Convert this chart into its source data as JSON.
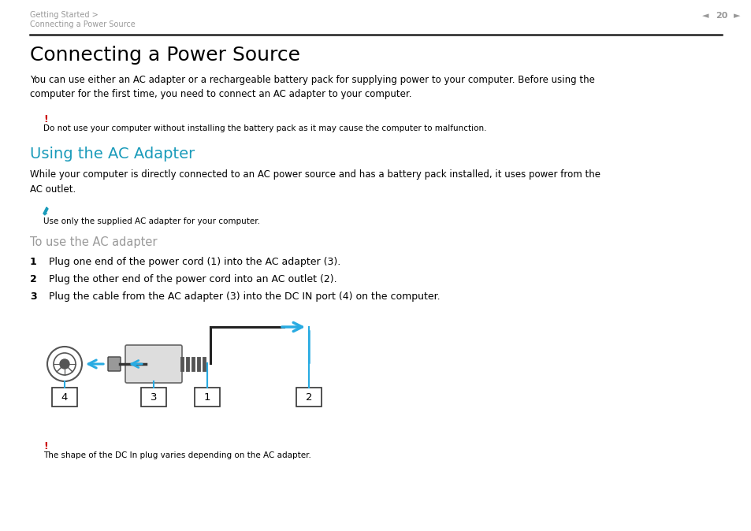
{
  "bg_color": "#ffffff",
  "header_text_line1": "Getting Started >",
  "header_text_line2": "Connecting a Power Source",
  "header_page": "20",
  "header_color": "#999999",
  "title": "Connecting a Power Source",
  "title_fontsize": 18,
  "body_text1": "You can use either an AC adapter or a rechargeable battery pack for supplying power to your computer. Before using the\ncomputer for the first time, you need to connect an AC adapter to your computer.",
  "warning_symbol": "!",
  "warning_color": "#cc0000",
  "warning_text": "Do not use your computer without installing the battery pack as it may cause the computer to malfunction.",
  "section_title": "Using the AC Adapter",
  "section_color": "#1a9bba",
  "section_fontsize": 14,
  "body_text2": "While your computer is directly connected to an AC power source and has a battery pack installed, it uses power from the\nAC outlet.",
  "note_text": "Use only the supplied AC adapter for your computer.",
  "subsection_title": "To use the AC adapter",
  "subsection_color": "#999999",
  "steps": [
    "Plug one end of the power cord (1) into the AC adapter (3).",
    "Plug the other end of the power cord into an AC outlet (2).",
    "Plug the cable from the AC adapter (3) into the DC IN port (4) on the computer."
  ],
  "warning_text2": "The shape of the DC In plug varies depending on the AC adapter.",
  "arrow_color": "#29abe2",
  "diagram_arrow_color": "#29abe2"
}
